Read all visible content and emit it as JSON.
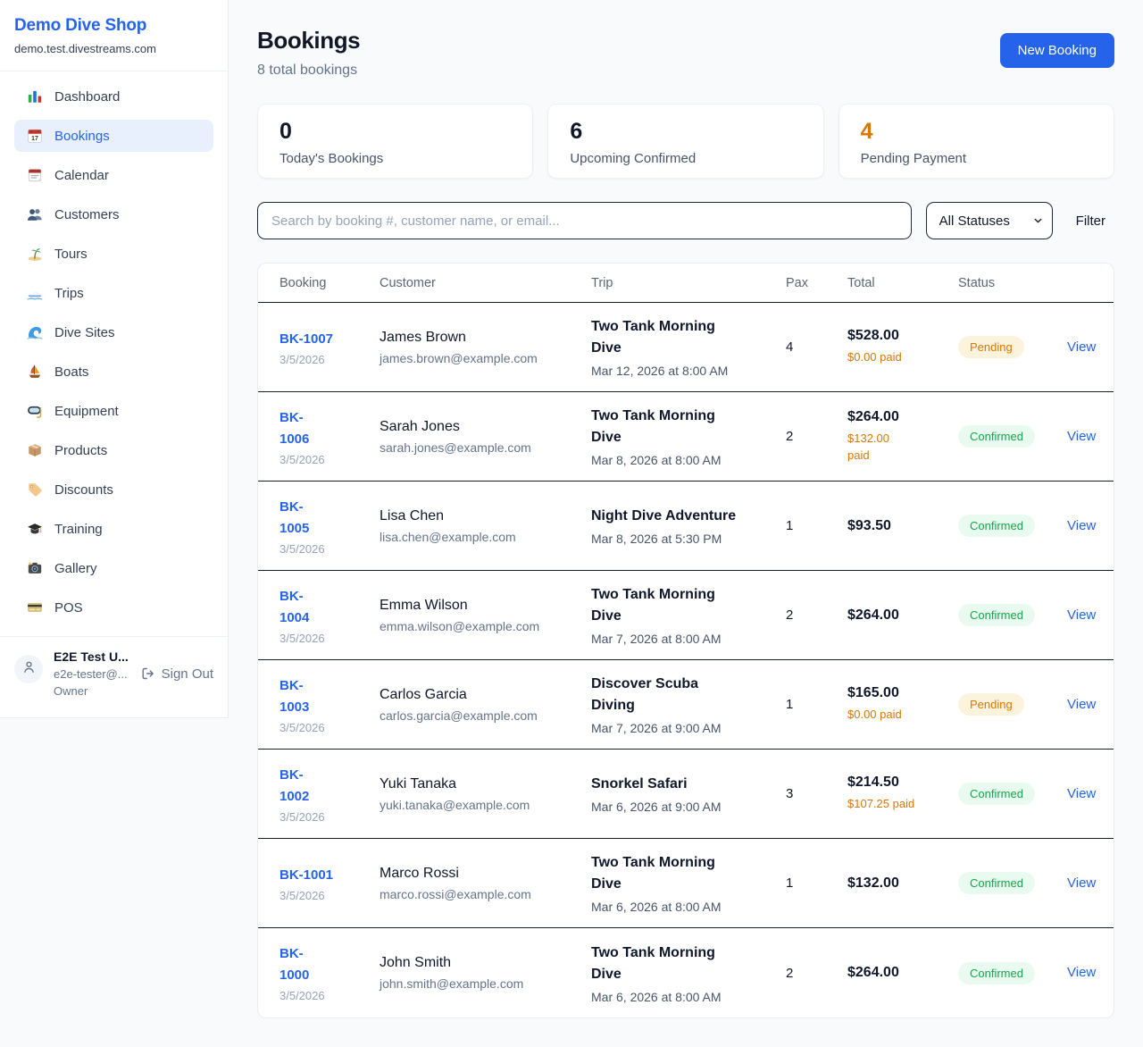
{
  "sidebar": {
    "shop_name": "Demo Dive Shop",
    "domain": "demo.test.divestreams.com",
    "items": [
      {
        "label": "Dashboard",
        "icon": "dashboard-chart-icon",
        "active": false
      },
      {
        "label": "Bookings",
        "icon": "bookings-calendar-icon",
        "active": true
      },
      {
        "label": "Calendar",
        "icon": "calendar-icon",
        "active": false
      },
      {
        "label": "Customers",
        "icon": "customers-people-icon",
        "active": false
      },
      {
        "label": "Tours",
        "icon": "tours-island-icon",
        "active": false
      },
      {
        "label": "Trips",
        "icon": "trips-speedboat-icon",
        "active": false
      },
      {
        "label": "Dive Sites",
        "icon": "dive-sites-wave-icon",
        "active": false
      },
      {
        "label": "Boats",
        "icon": "boats-sailboat-icon",
        "active": false
      },
      {
        "label": "Equipment",
        "icon": "equipment-mask-icon",
        "active": false
      },
      {
        "label": "Products",
        "icon": "products-box-icon",
        "active": false
      },
      {
        "label": "Discounts",
        "icon": "discounts-tag-icon",
        "active": false
      },
      {
        "label": "Training",
        "icon": "training-cap-icon",
        "active": false
      },
      {
        "label": "Gallery",
        "icon": "gallery-camera-icon",
        "active": false
      },
      {
        "label": "POS",
        "icon": "pos-card-icon",
        "active": false
      }
    ],
    "user": {
      "name": "E2E Test U...",
      "email": "e2e-tester@...",
      "role": "Owner",
      "sign_out_label": "Sign Out"
    }
  },
  "header": {
    "title": "Bookings",
    "subtitle": "8 total bookings",
    "new_booking_label": "New Booking"
  },
  "stats": [
    {
      "value": "0",
      "label": "Today's Bookings",
      "accent": "default"
    },
    {
      "value": "6",
      "label": "Upcoming Confirmed",
      "accent": "default"
    },
    {
      "value": "4",
      "label": "Pending Payment",
      "accent": "orange"
    }
  ],
  "filters": {
    "search_placeholder": "Search by booking #, customer name, or email...",
    "status_selected": "All Statuses",
    "filter_label": "Filter"
  },
  "table": {
    "columns": [
      "Booking",
      "Customer",
      "Trip",
      "Pax",
      "Total",
      "Status"
    ],
    "rows": [
      {
        "id": "BK-1007",
        "date": "3/5/2026",
        "customer": "James Brown",
        "email": "james.brown@example.com",
        "trip": "Two Tank Morning\nDive",
        "trip_time": "Mar 12, 2026 at 8:00 AM",
        "pax": "4",
        "total": "$528.00",
        "paid": "$0.00 paid",
        "status": "Pending",
        "view_label": "View"
      },
      {
        "id": "BK-\n1006",
        "date": "3/5/2026",
        "customer": "Sarah Jones",
        "email": "sarah.jones@example.com",
        "trip": "Two Tank Morning\nDive",
        "trip_time": "Mar 8, 2026 at 8:00 AM",
        "pax": "2",
        "total": "$264.00",
        "paid": "$132.00\npaid",
        "status": "Confirmed",
        "view_label": "View"
      },
      {
        "id": "BK-\n1005",
        "date": "3/5/2026",
        "customer": "Lisa Chen",
        "email": "lisa.chen@example.com",
        "trip": "Night Dive Adventure",
        "trip_time": "Mar 8, 2026 at 5:30 PM",
        "pax": "1",
        "total": "$93.50",
        "paid": null,
        "status": "Confirmed",
        "view_label": "View"
      },
      {
        "id": "BK-\n1004",
        "date": "3/5/2026",
        "customer": "Emma Wilson",
        "email": "emma.wilson@example.com",
        "trip": "Two Tank Morning\nDive",
        "trip_time": "Mar 7, 2026 at 8:00 AM",
        "pax": "2",
        "total": "$264.00",
        "paid": null,
        "status": "Confirmed",
        "view_label": "View"
      },
      {
        "id": "BK-\n1003",
        "date": "3/5/2026",
        "customer": "Carlos Garcia",
        "email": "carlos.garcia@example.com",
        "trip": "Discover Scuba\nDiving",
        "trip_time": "Mar 7, 2026 at 9:00 AM",
        "pax": "1",
        "total": "$165.00",
        "paid": "$0.00 paid",
        "status": "Pending",
        "view_label": "View"
      },
      {
        "id": "BK-\n1002",
        "date": "3/5/2026",
        "customer": "Yuki Tanaka",
        "email": "yuki.tanaka@example.com",
        "trip": "Snorkel Safari",
        "trip_time": "Mar 6, 2026 at 9:00 AM",
        "pax": "3",
        "total": "$214.50",
        "paid": "$107.25 paid",
        "status": "Confirmed",
        "view_label": "View"
      },
      {
        "id": "BK-1001",
        "date": "3/5/2026",
        "customer": "Marco Rossi",
        "email": "marco.rossi@example.com",
        "trip": "Two Tank Morning\nDive",
        "trip_time": "Mar 6, 2026 at 8:00 AM",
        "pax": "1",
        "total": "$132.00",
        "paid": null,
        "status": "Confirmed",
        "view_label": "View"
      },
      {
        "id": "BK-\n1000",
        "date": "3/5/2026",
        "customer": "John Smith",
        "email": "john.smith@example.com",
        "trip": "Two Tank Morning\nDive",
        "trip_time": "Mar 6, 2026 at 8:00 AM",
        "pax": "2",
        "total": "$264.00",
        "paid": null,
        "status": "Confirmed",
        "view_label": "View"
      }
    ]
  },
  "colors": {
    "accent_blue": "#2563eb",
    "pending_orange": "#d97706",
    "confirmed_green": "#16a34a",
    "page_background": "#f8fafc"
  }
}
